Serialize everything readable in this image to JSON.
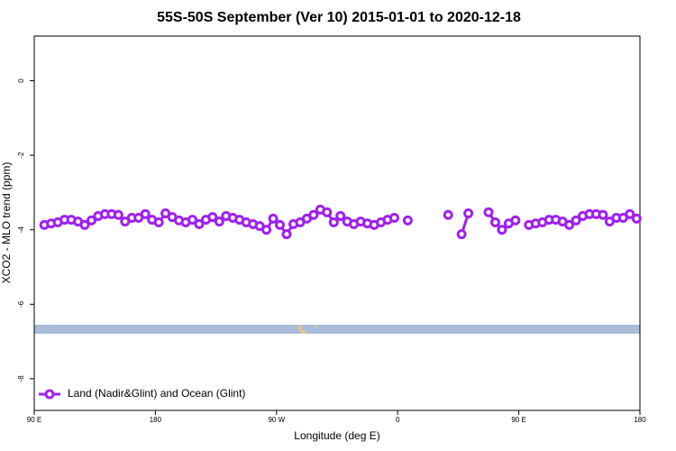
{
  "chart_data": {
    "type": "line",
    "title": "55S-50S September (Ver 10)   2015-01-01 to 2020-12-18",
    "xlabel": "Longitude (deg E)",
    "ylabel": "XCO2 - MLO trend (ppm)",
    "xlim": [
      -270,
      180
    ],
    "xticks": [
      {
        "value": -270,
        "label": "90 E"
      },
      {
        "value": -180,
        "label": "180"
      },
      {
        "value": -90,
        "label": "90 W"
      },
      0,
      {
        "value": 90,
        "label": "90 E"
      },
      {
        "value": 180,
        "label": "180"
      }
    ],
    "ylim": [
      -8.85,
      1.2
    ],
    "yticks": [
      0,
      -2,
      -4,
      -6,
      -8
    ],
    "legend": "lower left",
    "x": [
      -262.5,
      -257.5,
      -252.5,
      -247.5,
      -242.5,
      -237.5,
      -232.5,
      -227.5,
      -222.5,
      -217.5,
      -212.5,
      -207.5,
      -202.5,
      -197.5,
      -192.5,
      -187.5,
      -182.5,
      -177.5,
      -172.5,
      -167.5,
      -162.5,
      -157.5,
      -152.5,
      -147.5,
      -142.5,
      -137.5,
      -132.5,
      -127.5,
      -122.5,
      -117.5,
      -112.5,
      -107.5,
      -102.5,
      -97.5,
      -92.5,
      -87.5,
      -82.5,
      -77.5,
      -72.5,
      -67.5,
      -62.5,
      -57.5,
      -52.5,
      -47.5,
      -42.5,
      -37.5,
      -32.5,
      -27.5,
      -22.5,
      -17.5,
      -12.5,
      -7.5,
      -2.5,
      2.5,
      7.5,
      12.5,
      17.5,
      22.5,
      27.5,
      32.5,
      37.5,
      42.5,
      47.5,
      52.5,
      57.5,
      62.5,
      67.5,
      72.5,
      77.5,
      82.5,
      87.5,
      92.5,
      97.5,
      102.5,
      107.5,
      112.5,
      117.5,
      122.5,
      127.5,
      132.5,
      137.5,
      142.5,
      147.5,
      152.5,
      157.5,
      162.5,
      167.5,
      172.5,
      177.5
    ],
    "series": [
      {
        "name": "Land (Nadir&Glint) and Ocean (Glint)",
        "color": "#a020f0",
        "values": [
          -3.87,
          -3.83,
          -3.8,
          -3.73,
          -3.73,
          -3.78,
          -3.87,
          -3.75,
          -3.63,
          -3.58,
          -3.58,
          -3.6,
          -3.78,
          -3.68,
          -3.68,
          -3.58,
          -3.73,
          -3.8,
          -3.56,
          -3.66,
          -3.75,
          -3.8,
          -3.73,
          -3.85,
          -3.73,
          -3.66,
          -3.78,
          -3.63,
          -3.68,
          -3.73,
          -3.8,
          -3.85,
          -3.9,
          -4.0,
          -3.7,
          -3.87,
          -4.12,
          -3.85,
          -3.8,
          -3.7,
          -3.6,
          -3.46,
          -3.53,
          -3.8,
          -3.63,
          -3.78,
          -3.85,
          -3.78,
          -3.83,
          -3.87,
          -3.8,
          -3.73,
          -3.68,
          null,
          -3.75,
          null,
          null,
          null,
          null,
          null,
          -3.6,
          null,
          -4.12,
          -3.56,
          null,
          null,
          -3.53,
          -3.8,
          -4.0,
          -3.83,
          -3.75,
          null,
          -3.87,
          -3.83,
          -3.8,
          -3.73,
          -3.73,
          -3.78,
          -3.87,
          -3.75,
          -3.63,
          -3.58,
          -3.58,
          -3.6,
          -3.78,
          -3.68,
          -3.68,
          -3.58,
          -3.7
        ]
      }
    ]
  }
}
